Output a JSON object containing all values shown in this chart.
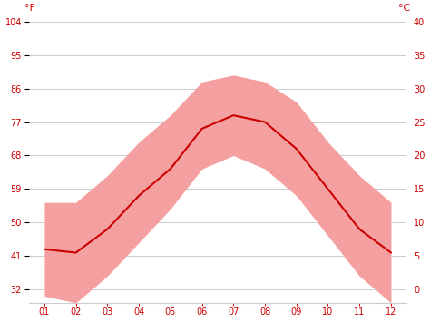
{
  "months": [
    1,
    2,
    3,
    4,
    5,
    6,
    7,
    8,
    9,
    10,
    11,
    12
  ],
  "month_labels": [
    "01",
    "02",
    "03",
    "04",
    "05",
    "06",
    "07",
    "08",
    "09",
    "10",
    "11",
    "12"
  ],
  "avg_temp_c": [
    6,
    5.5,
    9,
    14,
    18,
    24,
    26,
    25,
    21,
    15,
    9,
    5.5
  ],
  "max_temp_c": [
    13,
    13,
    17,
    22,
    26,
    31,
    32,
    31,
    28,
    22,
    17,
    13
  ],
  "min_temp_c": [
    -1,
    -2,
    2,
    7,
    12,
    18,
    20,
    18,
    14,
    8,
    2,
    -2
  ],
  "ylim_c": [
    -2,
    40
  ],
  "yticks_c": [
    0,
    5,
    10,
    15,
    20,
    25,
    30,
    35,
    40
  ],
  "ytick_labels_c": [
    "0",
    "5",
    "10",
    "15",
    "20",
    "25",
    "30",
    "35",
    "40"
  ],
  "ytick_labels_f": [
    "32",
    "41",
    "50",
    "59",
    "68",
    "77",
    "86",
    "95",
    "104"
  ],
  "line_color": "#cc0000",
  "fill_color": "#f5a0a0",
  "grid_color": "#cccccc",
  "label_color": "#cc0000",
  "background_color": "#ffffff",
  "ylabel_left": "°F",
  "ylabel_right": "°C"
}
